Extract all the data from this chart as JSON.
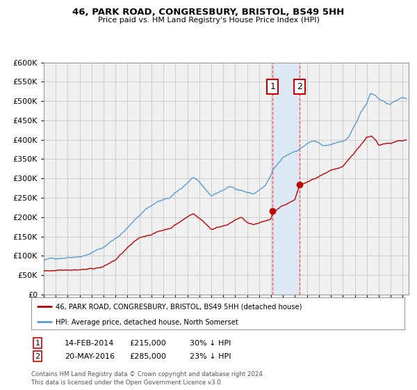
{
  "title": "46, PARK ROAD, CONGRESBURY, BRISTOL, BS49 5HH",
  "subtitle": "Price paid vs. HM Land Registry's House Price Index (HPI)",
  "hpi_label": "HPI: Average price, detached house, North Somerset",
  "price_label": "46, PARK ROAD, CONGRESBURY, BRISTOL, BS49 5HH (detached house)",
  "legend_footer": "Contains HM Land Registry data © Crown copyright and database right 2024.\nThis data is licensed under the Open Government Licence v3.0.",
  "purchase1_date": "14-FEB-2014",
  "purchase1_price": 215000,
  "purchase1_pct": "30% ↓ HPI",
  "purchase2_date": "20-MAY-2016",
  "purchase2_price": 285000,
  "purchase2_pct": "23% ↓ HPI",
  "hpi_color": "#5b9bd5",
  "price_color": "#c00000",
  "highlight_color": "#dce9f5",
  "dashed_line_color": "#ff4444",
  "grid_color": "#cccccc",
  "bg_color": "#ffffff",
  "plot_bg_color": "#f0f0f0",
  "ylim": [
    0,
    600000
  ],
  "yticks": [
    0,
    50000,
    100000,
    150000,
    200000,
    250000,
    300000,
    350000,
    400000,
    450000,
    500000,
    550000,
    600000
  ],
  "xlim_start": 1995.0,
  "xlim_end": 2025.5
}
